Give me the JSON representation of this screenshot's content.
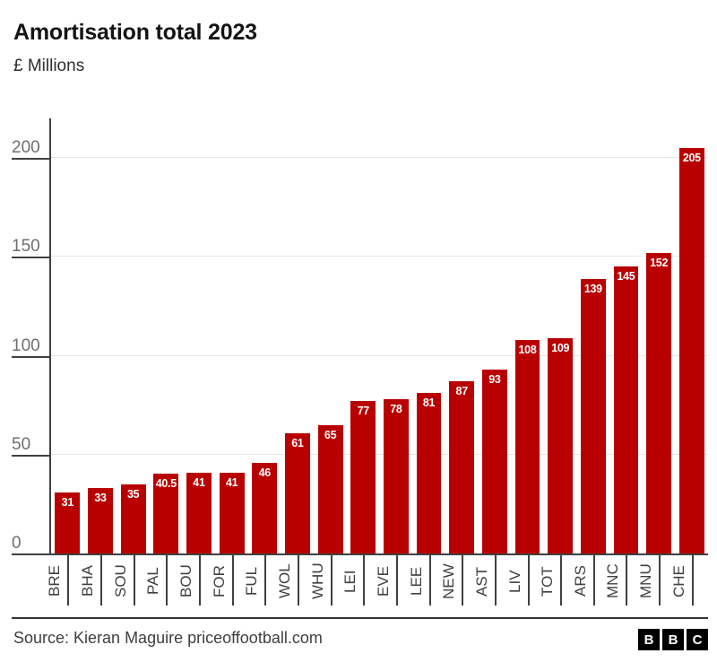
{
  "header": {
    "title": "Amortisation total 2023",
    "subtitle": "£ Millions"
  },
  "chart_data": {
    "type": "bar",
    "title": "Amortisation total 2023",
    "xlabel": "",
    "ylabel": "£ Millions",
    "categories": [
      "BRE",
      "BHA",
      "SOU",
      "PAL",
      "BOU",
      "FOR",
      "FUL",
      "WOL",
      "WHU",
      "LEI",
      "EVE",
      "LEE",
      "NEW",
      "AST",
      "LIV",
      "TOT",
      "ARS",
      "MNC",
      "MNU",
      "CHE"
    ],
    "values": [
      31,
      33,
      35,
      40.5,
      41,
      41,
      46,
      61,
      65,
      77,
      78,
      81,
      87,
      93,
      108,
      109,
      139,
      145,
      152,
      205
    ],
    "ylim": [
      0,
      220
    ],
    "yticks": [
      0,
      50,
      100,
      150,
      200
    ],
    "grid": "horizontal",
    "legend": "none",
    "bar_color": "#b80000",
    "value_label_color": "#ffffff"
  },
  "footer": {
    "source": "Source: Kieran Maguire priceoffootball.com",
    "logo_letters": [
      "B",
      "B",
      "C"
    ]
  }
}
